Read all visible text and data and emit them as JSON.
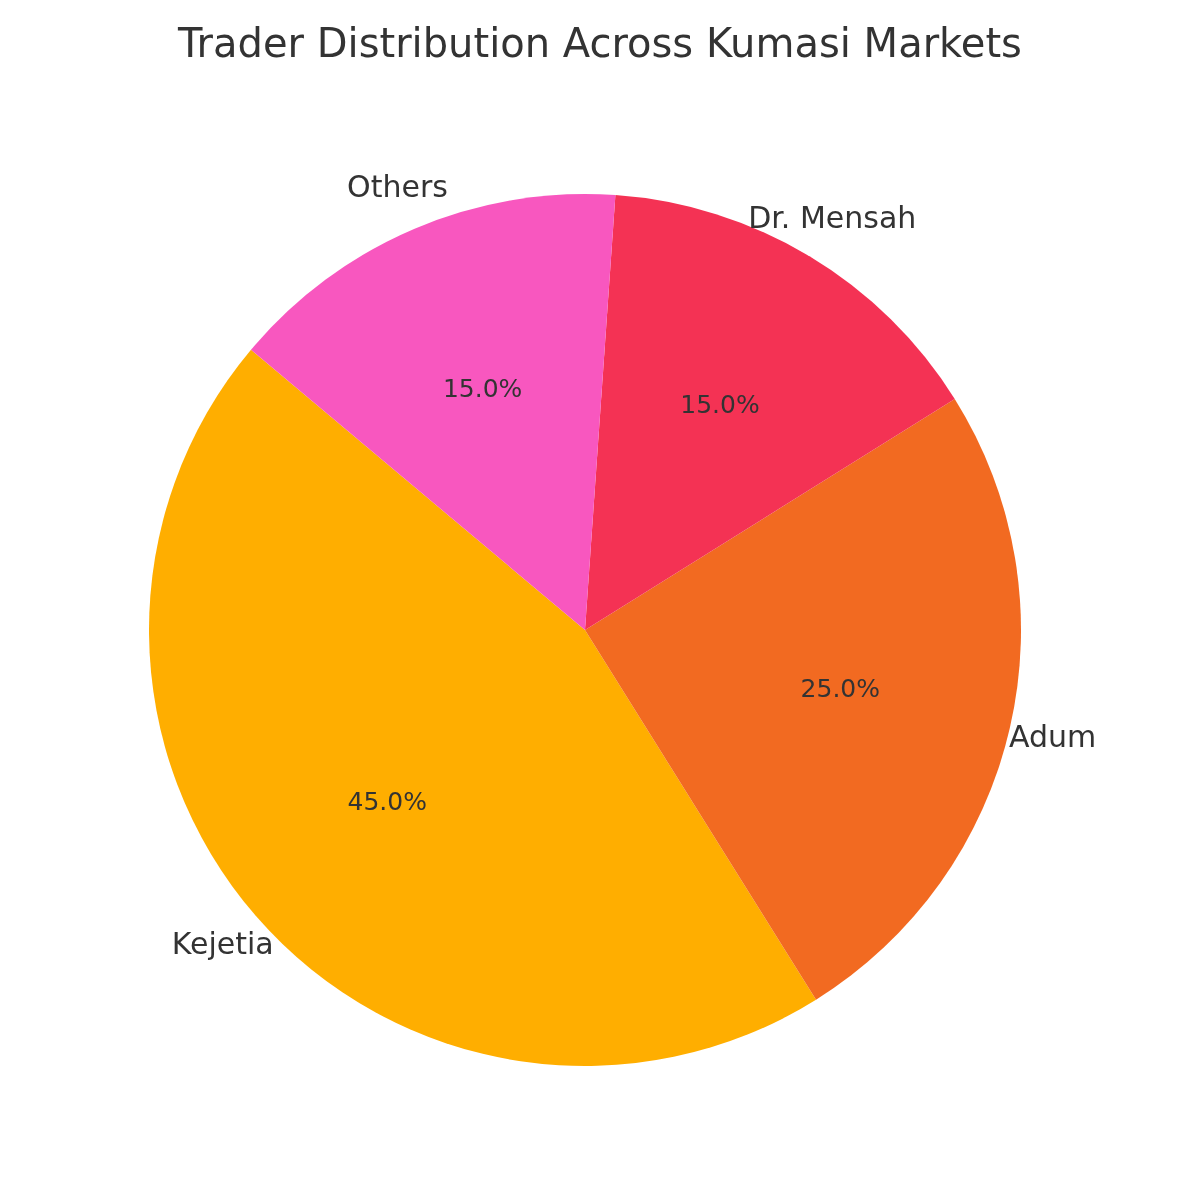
{
  "chart_data": {
    "type": "pie",
    "title": "Trader Distribution Across Kumasi Markets",
    "categories": [
      "Kejetia",
      "Adum",
      "Dr. Mensah",
      "Others"
    ],
    "values": [
      45,
      25,
      15,
      15
    ],
    "colors": [
      "#ffae00",
      "#f26a21",
      "#f43254",
      "#f857bf"
    ],
    "value_labels": [
      "45.0%",
      "25.0%",
      "15.0%",
      "15.0%"
    ]
  }
}
